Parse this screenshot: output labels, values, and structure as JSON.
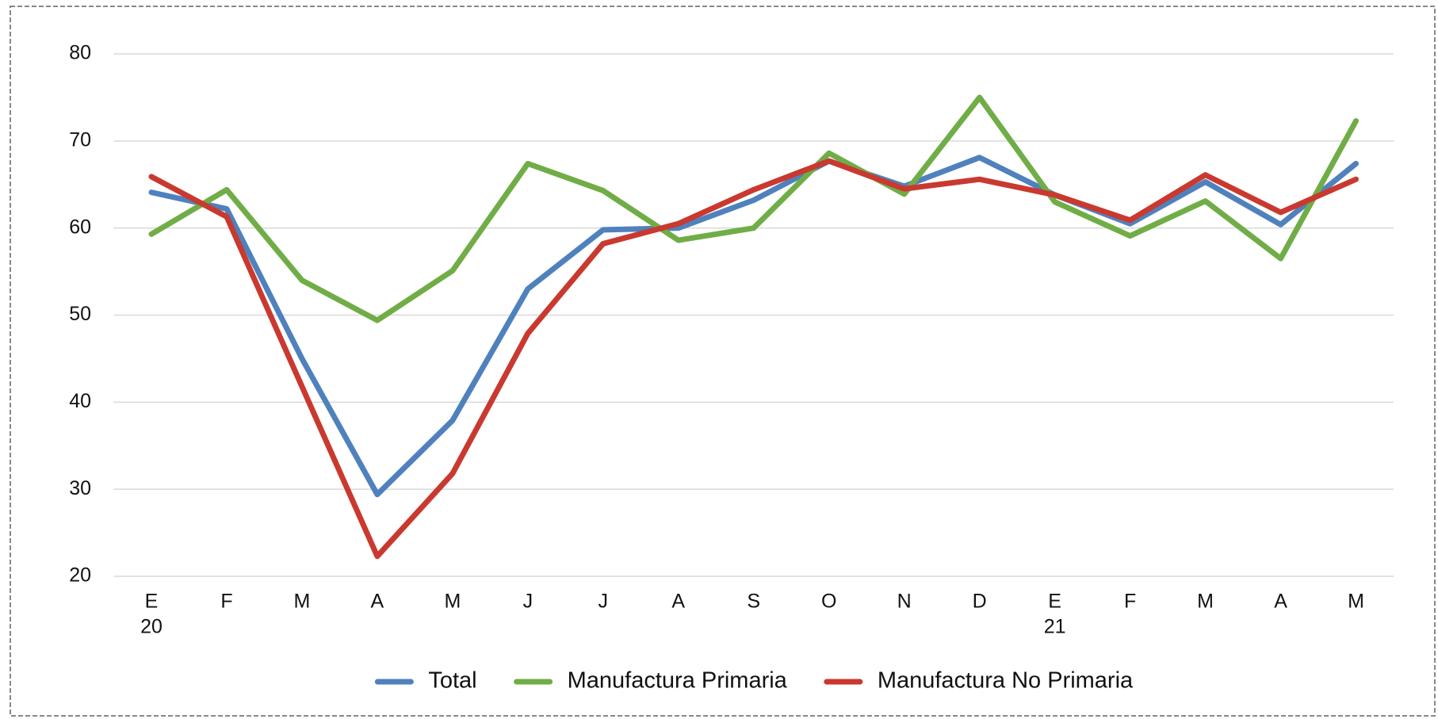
{
  "chart_data": {
    "type": "line",
    "categories": [
      "E",
      "F",
      "M",
      "A",
      "M",
      "J",
      "J",
      "A",
      "S",
      "O",
      "N",
      "D",
      "E",
      "F",
      "M",
      "A",
      "M"
    ],
    "year_labels": [
      "20",
      null,
      null,
      null,
      null,
      null,
      null,
      null,
      null,
      null,
      null,
      null,
      "21",
      null,
      null,
      null,
      null
    ],
    "series": [
      {
        "name": "Total",
        "color": "#4f81bd",
        "values": [
          64.1,
          62.2,
          45.0,
          29.4,
          37.9,
          53.0,
          59.8,
          60.0,
          63.2,
          67.7,
          64.8,
          68.1,
          63.8,
          60.5,
          65.3,
          60.4,
          67.4
        ]
      },
      {
        "name": "Manufactura Primaria",
        "color": "#70ad47",
        "values": [
          59.3,
          64.4,
          54.0,
          49.4,
          55.1,
          67.4,
          64.3,
          58.6,
          60.0,
          68.6,
          63.9,
          75.0,
          63.0,
          59.1,
          63.1,
          56.5,
          72.3
        ]
      },
      {
        "name": "Manufactura No Primaria",
        "color": "#c9392f",
        "values": [
          65.9,
          61.3,
          41.8,
          22.3,
          31.8,
          47.9,
          58.2,
          60.5,
          64.4,
          67.7,
          64.5,
          65.6,
          63.8,
          60.9,
          66.1,
          61.8,
          65.6
        ]
      }
    ],
    "ylim": [
      20,
      80
    ],
    "yticks": [
      20,
      30,
      40,
      50,
      60,
      70,
      80
    ],
    "grid": true,
    "legend": "bottom"
  }
}
